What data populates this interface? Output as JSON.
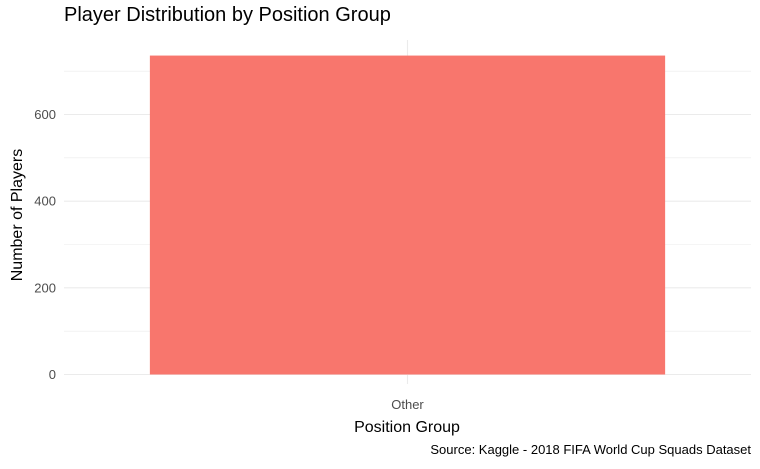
{
  "chart_data": {
    "type": "bar",
    "title": "Player Distribution by Position Group",
    "xlabel": "Position Group",
    "ylabel": "Number of Players",
    "categories": [
      "Other"
    ],
    "values": [
      736
    ],
    "yticks": [
      0,
      200,
      400,
      600
    ],
    "ylim": [
      0,
      736
    ],
    "grid": true,
    "caption": "Source: Kaggle - 2018 FIFA World Cup Squads Dataset",
    "bar_color": "#F8766D",
    "grid_color": "#EBEBEB",
    "tick_label_color": "#4D4D4D"
  }
}
